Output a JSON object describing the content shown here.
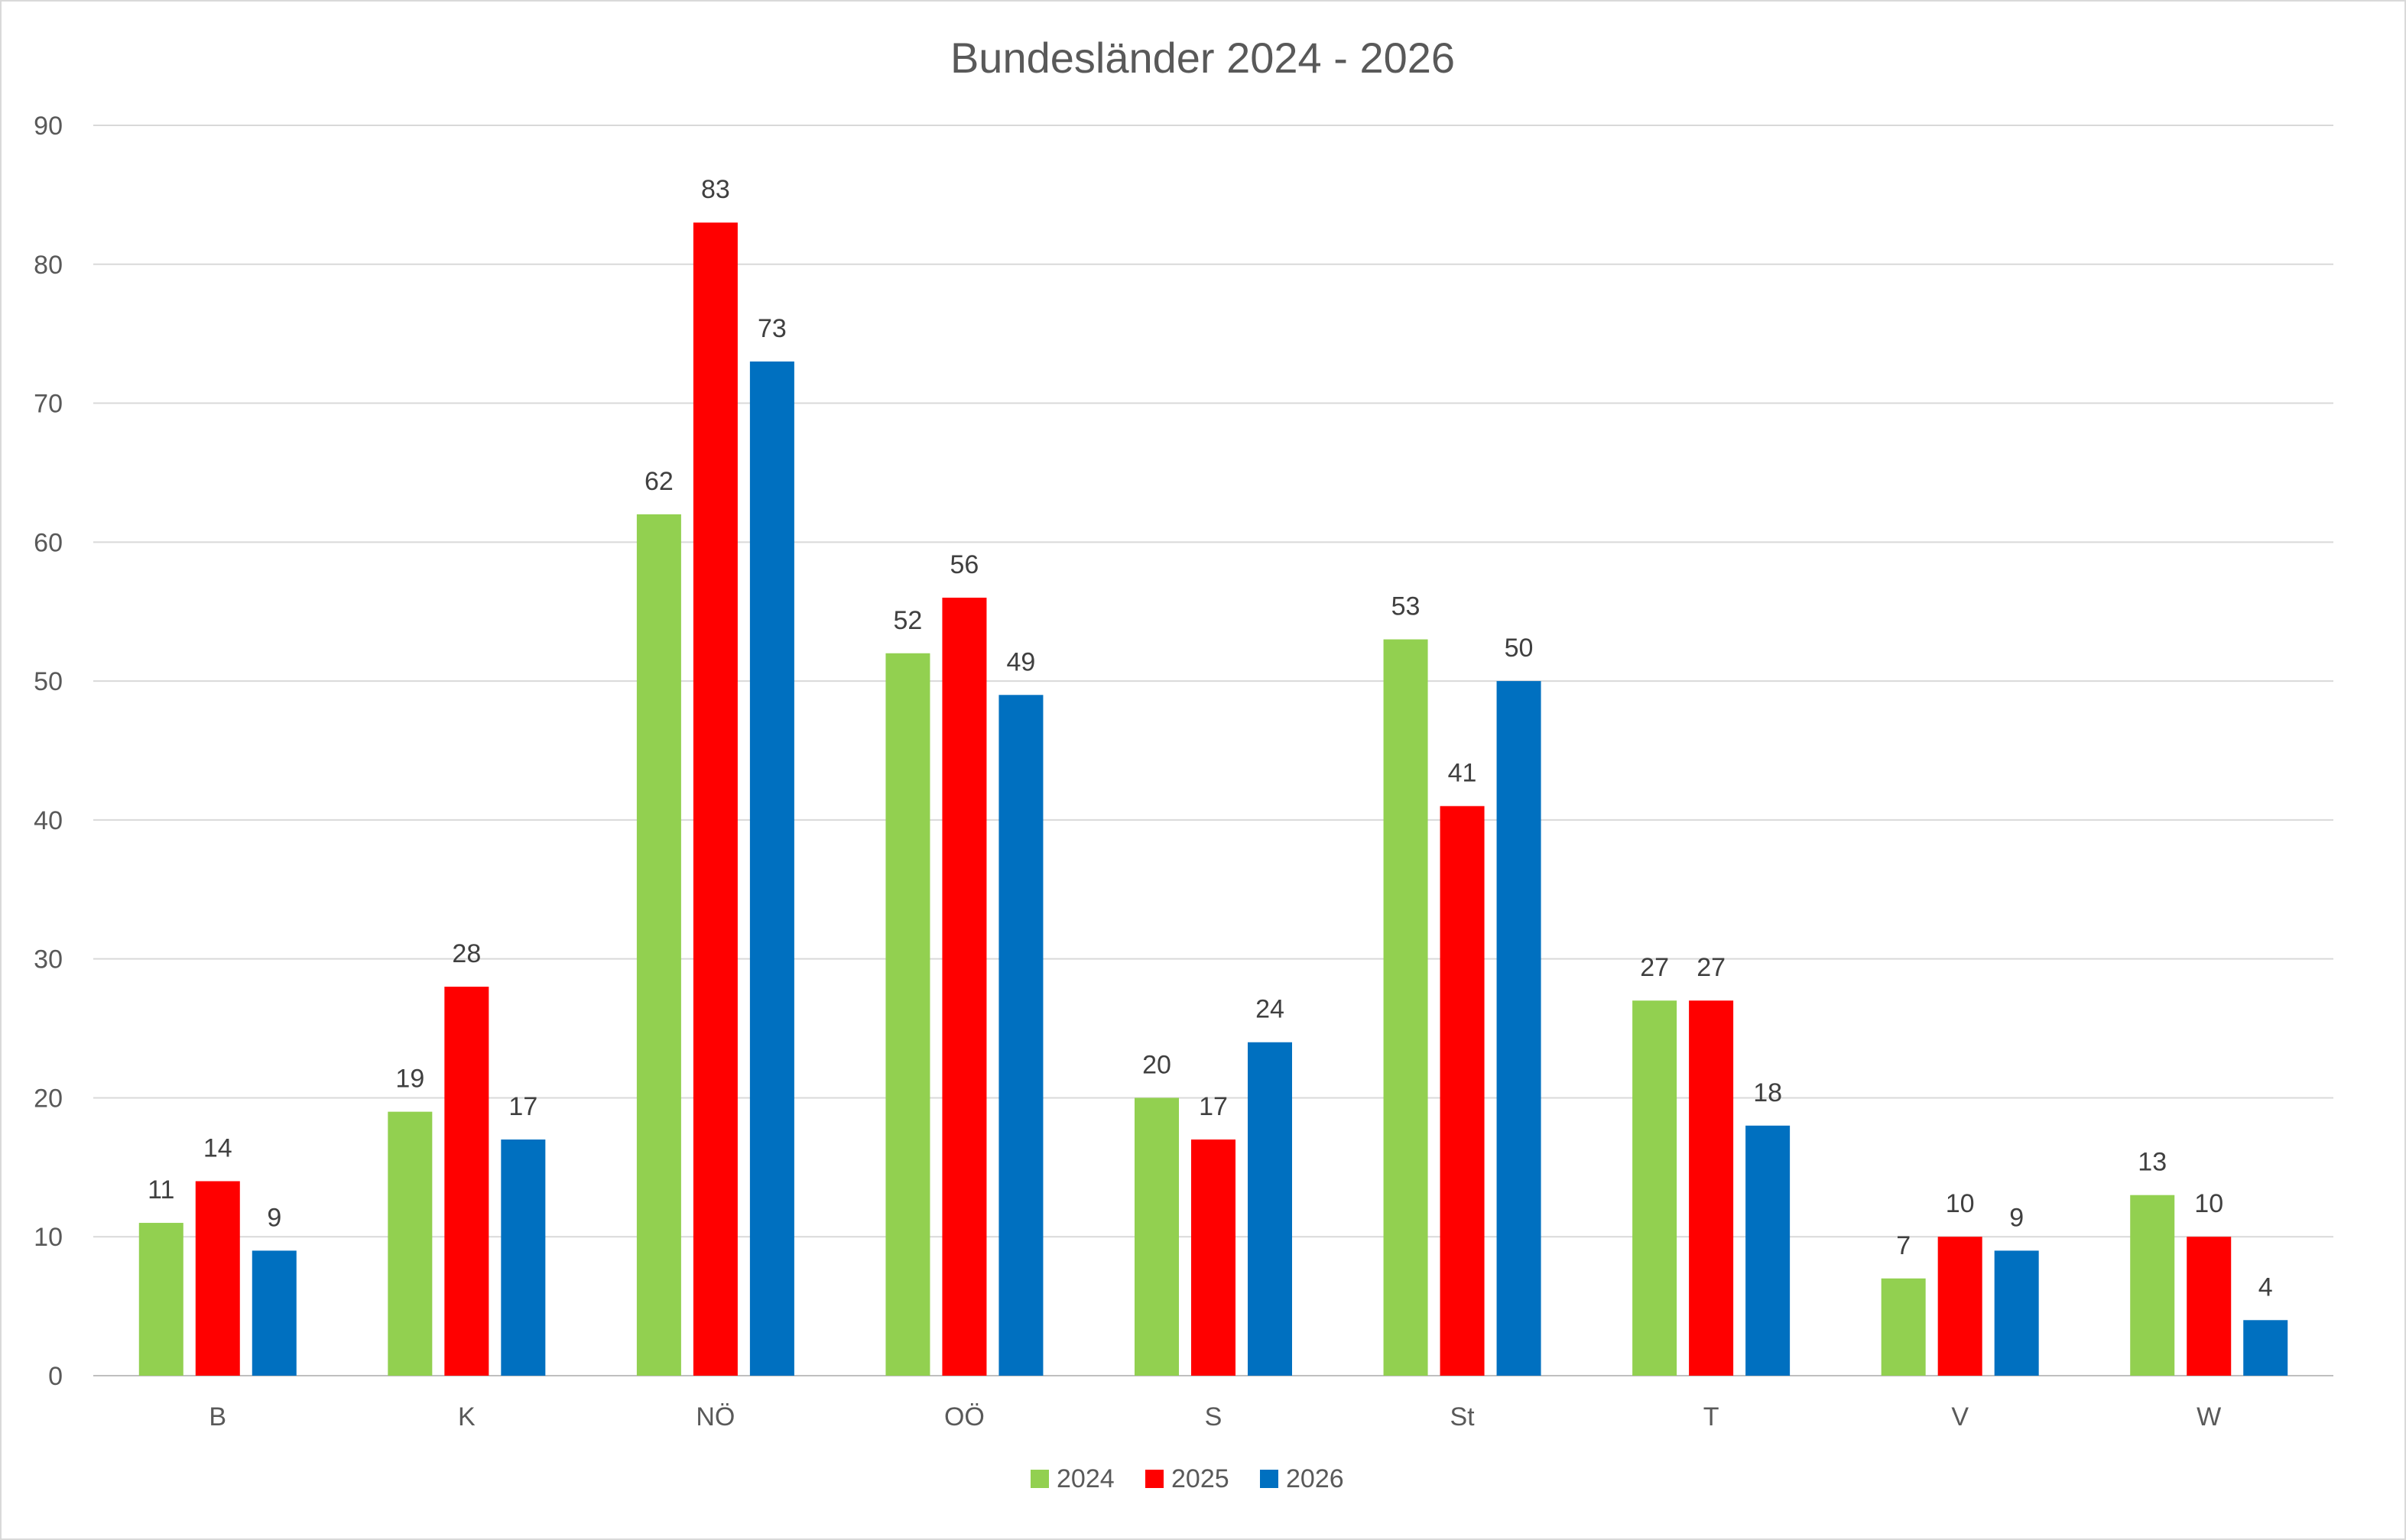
{
  "chart_data": {
    "type": "bar",
    "title": "Bundesländer 2024 - 2026",
    "xlabel": "",
    "ylabel": "",
    "categories": [
      "B",
      "K",
      "NÖ",
      "OÖ",
      "S",
      "St",
      "T",
      "V",
      "W"
    ],
    "series": [
      {
        "name": "2024",
        "color": "#92d050",
        "values": [
          11,
          19,
          62,
          52,
          20,
          53,
          27,
          7,
          13
        ]
      },
      {
        "name": "2025",
        "color": "#ff0000",
        "values": [
          14,
          28,
          83,
          56,
          17,
          41,
          27,
          10,
          10
        ]
      },
      {
        "name": "2026",
        "color": "#0070c0",
        "values": [
          9,
          17,
          73,
          49,
          24,
          50,
          18,
          9,
          4
        ]
      }
    ],
    "ylim": [
      0,
      90
    ],
    "yticks": [
      0,
      10,
      20,
      30,
      40,
      50,
      60,
      70,
      80,
      90
    ],
    "grid": true,
    "legend": "bottom-center",
    "data_labels": true
  }
}
